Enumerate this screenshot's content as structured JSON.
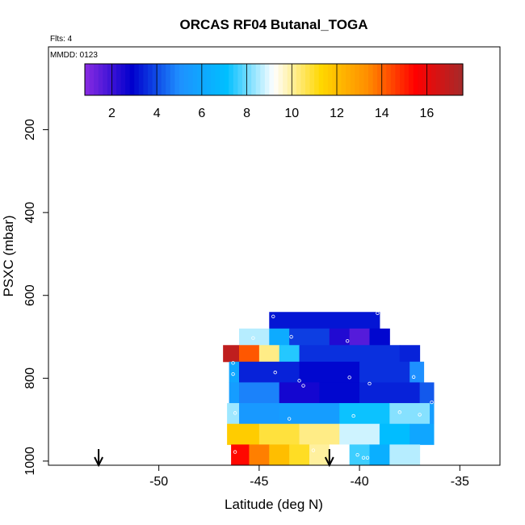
{
  "chart_data": {
    "type": "heatmap",
    "title": "ORCAS RF04 Butanal_TOGA",
    "flights_note": "Flts: 4",
    "date_note": "MMDD: 0123",
    "xlabel": "Latitude (deg N)",
    "ylabel": "PSXC (mbar)",
    "xlim": [
      -55.5,
      -33
    ],
    "ylim": [
      1010,
      0
    ],
    "x_ticks": [
      -50,
      -45,
      -40,
      -35
    ],
    "x_tick_labels": [
      "-50",
      "-45",
      "-40",
      "-35"
    ],
    "y_ticks": [
      200,
      400,
      600,
      800,
      1000
    ],
    "y_tick_labels": [
      "200",
      "400",
      "600",
      "800",
      "1000"
    ],
    "colorbar": {
      "range": [
        0.8,
        17.6
      ],
      "ticks": [
        2,
        4,
        6,
        8,
        10,
        12,
        14,
        16
      ],
      "tick_labels": [
        "2",
        "4",
        "6",
        "8",
        "10",
        "12",
        "14",
        "16"
      ],
      "colors": [
        "#8a2be2",
        "#0000cd",
        "#1e90ff",
        "#00bfff",
        "#ffffff",
        "#ffd700",
        "#ff8c00",
        "#ff0000",
        "#a52a2a"
      ]
    },
    "arrows_at_latitude": [
      -53,
      -41.5
    ],
    "rows": [
      {
        "p_top": 640,
        "p_bot": 680,
        "segments": [
          [
            -44.5,
            -39,
            3.2
          ]
        ]
      },
      {
        "p_top": 680,
        "p_bot": 720,
        "segments": [
          [
            -46,
            -44.5,
            8.6
          ],
          [
            -44.5,
            -43.5,
            6.2
          ],
          [
            -43.5,
            -41.5,
            3.8
          ],
          [
            -41.5,
            -40.5,
            2.4
          ],
          [
            -40.5,
            -39.5,
            1.6
          ],
          [
            -39.5,
            -38.5,
            3.0
          ]
        ]
      },
      {
        "p_top": 720,
        "p_bot": 760,
        "segments": [
          [
            -46.8,
            -46,
            17.0
          ],
          [
            -46,
            -45,
            14.2
          ],
          [
            -45,
            -44,
            10.2
          ],
          [
            -44,
            -43,
            7.4
          ],
          [
            -43,
            -38,
            3.6
          ],
          [
            -38,
            -37,
            3.4
          ]
        ]
      },
      {
        "p_top": 760,
        "p_bot": 810,
        "segments": [
          [
            -46.5,
            -46,
            6.0
          ],
          [
            -46,
            -43,
            3.4
          ],
          [
            -43,
            -40,
            3.0
          ],
          [
            -40,
            -37.5,
            3.6
          ],
          [
            -37.5,
            -36.8,
            5.0
          ]
        ]
      },
      {
        "p_top": 810,
        "p_bot": 860,
        "segments": [
          [
            -46.5,
            -46,
            5.6
          ],
          [
            -46,
            -44,
            4.8
          ],
          [
            -44,
            -42,
            2.6
          ],
          [
            -42,
            -40,
            3.0
          ],
          [
            -40,
            -37,
            3.4
          ],
          [
            -37,
            -36.3,
            4.2
          ]
        ]
      },
      {
        "p_top": 860,
        "p_bot": 910,
        "segments": [
          [
            -46.6,
            -46,
            8.4
          ],
          [
            -46,
            -44,
            5.4
          ],
          [
            -44,
            -41,
            5.6
          ],
          [
            -41,
            -38.5,
            7.2
          ],
          [
            -38.5,
            -36.5,
            8.2
          ],
          [
            -36.5,
            -36.3,
            5.6
          ]
        ]
      },
      {
        "p_top": 910,
        "p_bot": 960,
        "segments": [
          [
            -46.6,
            -45,
            11.6
          ],
          [
            -45,
            -43,
            10.8
          ],
          [
            -43,
            -41,
            10.2
          ],
          [
            -41,
            -39,
            8.8
          ],
          [
            -39,
            -37.5,
            7.0
          ],
          [
            -37.5,
            -36.3,
            6.0
          ]
        ]
      },
      {
        "p_top": 960,
        "p_bot": 1010,
        "segments": [
          [
            -46.4,
            -45.5,
            15.4
          ],
          [
            -45.5,
            -44.5,
            13.6
          ],
          [
            -44.5,
            -43.5,
            12.0
          ],
          [
            -43.5,
            -42.5,
            11.0
          ],
          [
            -42.5,
            -41.5,
            10.0
          ],
          [
            -41.5,
            -40.5,
            9.2
          ],
          [
            -40.5,
            -39.5,
            7.6
          ],
          [
            -39.5,
            -38.5,
            6.4
          ],
          [
            -38.5,
            -37,
            8.6
          ]
        ]
      }
    ],
    "points": [
      {
        "x": -44.3,
        "y": 651
      },
      {
        "x": -40.9,
        "y": 630
      },
      {
        "x": -39.1,
        "y": 643
      },
      {
        "x": -45.3,
        "y": 703
      },
      {
        "x": -43.4,
        "y": 700
      },
      {
        "x": -40.6,
        "y": 710
      },
      {
        "x": -46.3,
        "y": 790
      },
      {
        "x": -44.2,
        "y": 786
      },
      {
        "x": -43.0,
        "y": 806
      },
      {
        "x": -40.5,
        "y": 798
      },
      {
        "x": -39.5,
        "y": 813
      },
      {
        "x": -37.3,
        "y": 797
      },
      {
        "x": -46.3,
        "y": 763
      },
      {
        "x": -42.8,
        "y": 818
      },
      {
        "x": -36.4,
        "y": 858
      },
      {
        "x": -46.2,
        "y": 884
      },
      {
        "x": -43.5,
        "y": 898
      },
      {
        "x": -40.3,
        "y": 891
      },
      {
        "x": -38.0,
        "y": 882
      },
      {
        "x": -37.0,
        "y": 888
      },
      {
        "x": -42.3,
        "y": 974
      },
      {
        "x": -46.2,
        "y": 978
      },
      {
        "x": -40.1,
        "y": 985
      },
      {
        "x": -39.8,
        "y": 992
      },
      {
        "x": -39.6,
        "y": 992
      },
      {
        "x": -36.8,
        "y": 974
      }
    ]
  }
}
